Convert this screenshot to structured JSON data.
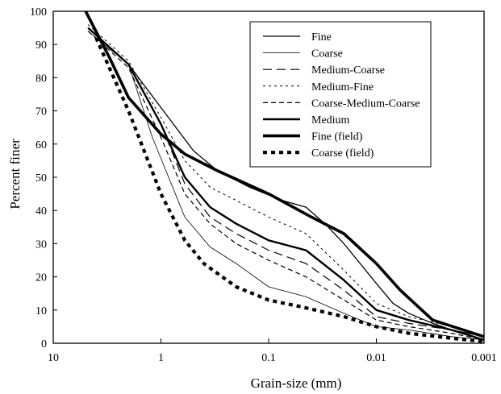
{
  "chart_data": {
    "type": "line",
    "title": "",
    "xlabel": "Grain-size (mm)",
    "ylabel": "Percent finer",
    "x_scale": "log",
    "x_reversed": true,
    "xlim": [
      10,
      0.001
    ],
    "ylim": [
      0,
      100
    ],
    "xticks": [
      10,
      1,
      0.1,
      0.01,
      0.001
    ],
    "xtick_labels": [
      "10",
      "1",
      "0.1",
      "0.01",
      "0.001"
    ],
    "yticks": [
      0,
      10,
      20,
      30,
      40,
      50,
      60,
      70,
      80,
      90,
      100
    ],
    "ytick_labels": [
      "0",
      "10",
      "20",
      "30",
      "40",
      "50",
      "60",
      "70",
      "80",
      "90",
      "100"
    ],
    "grid": false,
    "legend_position": "top-right",
    "series": [
      {
        "name": "Fine",
        "style": "solid-thin",
        "x": [
          4.75,
          3.5,
          2.0,
          1.0,
          0.5,
          0.3,
          0.15,
          0.075,
          0.045,
          0.03,
          0.02,
          0.01,
          0.007,
          0.005,
          0.003,
          0.002,
          0.001
        ],
        "y": [
          95,
          91,
          84,
          71,
          58,
          52,
          47,
          43,
          41,
          36,
          30,
          18,
          12,
          9,
          6,
          4,
          2
        ]
      },
      {
        "name": "Coarse",
        "style": "solid-hairline",
        "x": [
          4.75,
          2.0,
          1.2,
          0.6,
          0.35,
          0.2,
          0.1,
          0.045,
          0.02,
          0.01,
          0.005,
          0.002,
          0.001
        ],
        "y": [
          94,
          84,
          62,
          38,
          29,
          24,
          17,
          14,
          9,
          5,
          4,
          2,
          1
        ]
      },
      {
        "name": "Medium-Coarse",
        "style": "long-dash",
        "x": [
          4.75,
          2.0,
          1.0,
          0.6,
          0.35,
          0.2,
          0.1,
          0.045,
          0.02,
          0.01,
          0.005,
          0.002,
          0.001
        ],
        "y": [
          95,
          84,
          66,
          48,
          38,
          33,
          28,
          24,
          16,
          8,
          6,
          4,
          1
        ]
      },
      {
        "name": "Medium-Fine",
        "style": "short-dash",
        "x": [
          4.75,
          2.0,
          1.0,
          0.6,
          0.35,
          0.2,
          0.1,
          0.045,
          0.02,
          0.01,
          0.005,
          0.002,
          0.001
        ],
        "y": [
          96,
          85,
          68,
          55,
          47,
          43,
          38,
          33,
          22,
          12,
          8,
          5,
          2
        ]
      },
      {
        "name": "Coarse-Medium-Coarse",
        "style": "medium-dash",
        "x": [
          4.75,
          2.0,
          1.0,
          0.6,
          0.35,
          0.2,
          0.1,
          0.045,
          0.02,
          0.01,
          0.005,
          0.002,
          0.001
        ],
        "y": [
          94,
          83,
          62,
          45,
          36,
          30,
          25,
          20,
          13,
          7,
          5,
          3,
          1
        ]
      },
      {
        "name": "Medium",
        "style": "solid-medium",
        "x": [
          4.75,
          2.0,
          1.0,
          0.6,
          0.35,
          0.2,
          0.1,
          0.045,
          0.02,
          0.01,
          0.005,
          0.002,
          0.001
        ],
        "y": [
          95,
          84,
          66,
          50,
          41,
          36,
          31,
          28,
          19,
          10,
          7,
          4,
          1
        ]
      },
      {
        "name": "Fine (field)",
        "style": "solid-thick",
        "x": [
          5.0,
          3.0,
          2.0,
          1.0,
          0.6,
          0.3,
          0.1,
          0.04,
          0.02,
          0.01,
          0.006,
          0.003,
          0.001
        ],
        "y": [
          100,
          86,
          74,
          63,
          57,
          52,
          45,
          38,
          33,
          24,
          16,
          7,
          2
        ]
      },
      {
        "name": "Coarse (field)",
        "style": "dotted-thick",
        "x": [
          4.0,
          2.0,
          1.0,
          0.6,
          0.4,
          0.2,
          0.1,
          0.05,
          0.02,
          0.01,
          0.005,
          0.002,
          0.001
        ],
        "y": [
          92,
          70,
          45,
          31,
          24,
          17,
          13,
          11,
          8,
          5,
          3,
          1.5,
          0.5
        ]
      }
    ]
  }
}
